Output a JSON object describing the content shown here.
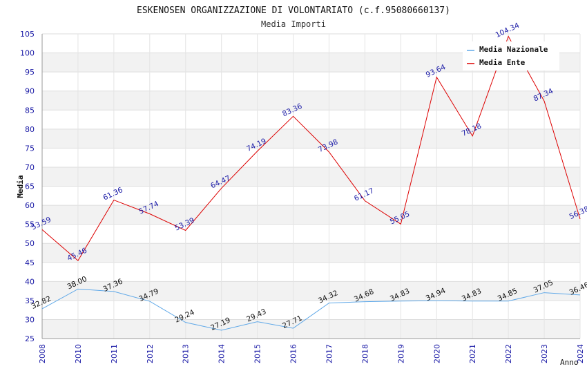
{
  "chart_data": {
    "type": "line",
    "title": "ESKENOSEN ORGANIZZAZIONE DI VOLONTARIATO (c.f.95080660137)",
    "subtitle": "Media Importi",
    "xlabel": "Anno",
    "ylabel": "Media",
    "ylim": [
      25,
      105
    ],
    "ytick_step": 5,
    "grid": true,
    "legend_position": "top-right",
    "categories": [
      "2008",
      "2010",
      "2011",
      "2012",
      "2013",
      "2014",
      "2015",
      "2016",
      "2017",
      "2018",
      "2019",
      "2020",
      "2021",
      "2022",
      "2023",
      "2024"
    ],
    "series": [
      {
        "name": "Media Nazionale",
        "color": "#5fa8e8",
        "label_color": "#111111",
        "values": [
          32.82,
          38.0,
          37.36,
          34.79,
          29.24,
          27.19,
          29.43,
          27.71,
          34.32,
          34.68,
          34.83,
          34.94,
          34.83,
          34.85,
          37.05,
          36.46
        ],
        "labels": [
          "32.82",
          "38.00",
          "37.36",
          "34.79",
          "29.24",
          "27.19",
          "29.43",
          "27.71",
          "34.32",
          "34.68",
          "34.83",
          "34.94",
          "34.83",
          "34.85",
          "37.05",
          "36.46"
        ]
      },
      {
        "name": "Media Ente",
        "color": "#dd0000",
        "label_color": "#1a1aa6",
        "values": [
          53.59,
          45.46,
          61.36,
          57.74,
          53.39,
          64.47,
          74.19,
          83.36,
          73.98,
          61.17,
          55.05,
          93.64,
          78.18,
          104.34,
          87.34,
          56.38
        ],
        "labels": [
          "53.59",
          "45.46",
          "61.36",
          "57.74",
          "53.39",
          "64.47",
          "74.19",
          "83.36",
          "73.98",
          "61.17",
          "55.05",
          "93.64",
          "78.18",
          "104.34",
          "87.34",
          "56.38"
        ]
      }
    ]
  }
}
